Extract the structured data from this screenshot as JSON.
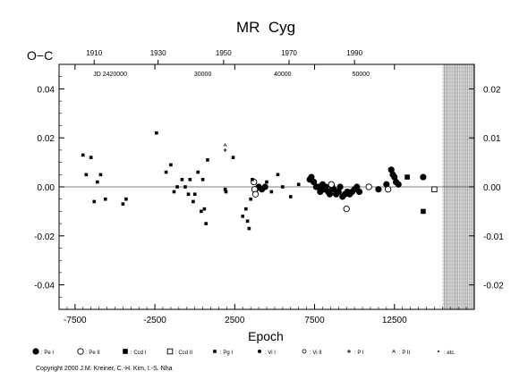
{
  "chart_data": {
    "type": "scatter",
    "title": "MR  Cyg",
    "ylabel": "O−C",
    "xlabel": "Epoch",
    "x_ticks": [
      "-7500",
      "-2500",
      "2500",
      "7500",
      "12500"
    ],
    "x_tick_values": [
      -7500,
      -2500,
      2500,
      7500,
      12500
    ],
    "xlim": [
      -8500,
      17500
    ],
    "ylim": [
      -0.05,
      0.05
    ],
    "y_ticks": [
      "0.04",
      "0.02",
      "0.00",
      "-0.02",
      "-0.04"
    ],
    "y_tick_values": [
      0.04,
      0.02,
      0.0,
      -0.02,
      -0.04
    ],
    "top_axis_years": [
      "1910",
      "1930",
      "1950",
      "1970",
      "1990"
    ],
    "top_axis_year_epochs": [
      -6300,
      -2300,
      1800,
      5900,
      10000
    ],
    "jd_labels": [
      "JD 2420000",
      "30000",
      "40000",
      "50000"
    ],
    "jd_label_epochs": [
      -5300,
      500,
      5500,
      10400
    ],
    "right_ticks": [
      "0.02",
      "0.01",
      "0.00",
      "-0.01",
      "-0.02"
    ],
    "right_tick_values": [
      0.02,
      0.01,
      0.0,
      -0.01,
      -0.02
    ],
    "hatched_region_from_epoch": 15500,
    "legend": [
      {
        "symbol": "filled-circle",
        "label": ": Pe I"
      },
      {
        "symbol": "open-circle",
        "label": ": Pe II"
      },
      {
        "symbol": "filled-square",
        "label": ": Ccd I"
      },
      {
        "symbol": "open-square",
        "label": ": Ccd II"
      },
      {
        "symbol": "small-square",
        "label": ": Pg I"
      },
      {
        "symbol": "small-dot",
        "label": ": Vi I"
      },
      {
        "symbol": "small-open-circle",
        "label": ": Vi II"
      },
      {
        "symbol": "plus",
        "label": ": P I"
      },
      {
        "symbol": "caret",
        "label": ": P II"
      },
      {
        "symbol": "tiny-dot",
        "label": ": etc."
      }
    ],
    "copyright": "Copyright 2000 J.M. Kreiner, C.-H. Kim, I.-S. Nha",
    "series": [
      {
        "name": "Pe I",
        "symbol": "filled-circle",
        "points": [
          [
            7200,
            0.003
          ],
          [
            7300,
            0.004
          ],
          [
            7450,
            0.002
          ],
          [
            7600,
            0.0
          ],
          [
            7750,
            0.0
          ],
          [
            7850,
            -0.002
          ],
          [
            8000,
            0.001
          ],
          [
            8100,
            -0.001
          ],
          [
            8200,
            0.0
          ],
          [
            8350,
            -0.002
          ],
          [
            8450,
            -0.003
          ],
          [
            8600,
            0.0
          ],
          [
            8700,
            -0.001
          ],
          [
            8850,
            -0.003
          ],
          [
            9000,
            -0.002
          ],
          [
            9100,
            0.0
          ],
          [
            9250,
            -0.004
          ],
          [
            9400,
            -0.003
          ],
          [
            9550,
            -0.002
          ],
          [
            9700,
            -0.003
          ],
          [
            9850,
            -0.002
          ],
          [
            10000,
            -0.001
          ],
          [
            10150,
            0.0
          ],
          [
            10300,
            -0.002
          ],
          [
            11500,
            -0.001
          ],
          [
            12000,
            0.001
          ],
          [
            12300,
            0.007
          ],
          [
            12400,
            0.005
          ],
          [
            12500,
            0.004
          ],
          [
            12600,
            0.002
          ],
          [
            12750,
            0.001
          ],
          [
            14300,
            0.004
          ],
          [
            4000,
            0.0
          ],
          [
            4200,
            -0.001
          ],
          [
            4400,
            0.0
          ],
          [
            3800,
            -0.001
          ]
        ]
      },
      {
        "name": "Pe II",
        "symbol": "open-circle",
        "points": [
          [
            3700,
            0.002
          ],
          [
            3750,
            -0.001
          ],
          [
            3800,
            -0.003
          ],
          [
            8550,
            0.001
          ],
          [
            9500,
            -0.009
          ],
          [
            10900,
            0.0
          ],
          [
            12100,
            -0.001
          ]
        ]
      },
      {
        "name": "Ccd I",
        "symbol": "filled-square",
        "points": [
          [
            13300,
            0.004
          ],
          [
            14300,
            -0.01
          ]
        ]
      },
      {
        "name": "Ccd II",
        "symbol": "open-square",
        "points": [
          [
            15000,
            -0.001
          ]
        ]
      },
      {
        "name": "Pg I",
        "symbol": "small-square",
        "points": [
          [
            -7000,
            0.013
          ],
          [
            -6800,
            0.005
          ],
          [
            -6500,
            0.012
          ],
          [
            -6300,
            -0.006
          ],
          [
            -6100,
            0.002
          ],
          [
            -5900,
            0.005
          ],
          [
            -5600,
            -0.005
          ],
          [
            -4500,
            -0.007
          ],
          [
            -4300,
            -0.005
          ],
          [
            -2400,
            0.022
          ],
          [
            -1800,
            0.006
          ],
          [
            -1500,
            0.009
          ],
          [
            -1300,
            -0.002
          ],
          [
            -1100,
            0.0
          ],
          [
            -800,
            0.003
          ],
          [
            -600,
            0.0
          ],
          [
            -400,
            -0.003
          ],
          [
            -300,
            0.003
          ],
          [
            -100,
            -0.006
          ],
          [
            0,
            -0.003
          ],
          [
            200,
            0.006
          ],
          [
            400,
            -0.01
          ],
          [
            500,
            0.003
          ],
          [
            600,
            -0.009
          ],
          [
            700,
            -0.015
          ],
          [
            800,
            0.011
          ],
          [
            1900,
            -0.001
          ],
          [
            1950,
            -0.002
          ],
          [
            2400,
            0.012
          ],
          [
            3000,
            -0.012
          ],
          [
            3200,
            -0.009
          ],
          [
            3300,
            -0.014
          ],
          [
            3400,
            -0.017
          ],
          [
            3500,
            -0.005
          ],
          [
            3600,
            0.003
          ],
          [
            4500,
            0.002
          ],
          [
            4800,
            -0.002
          ],
          [
            5200,
            0.005
          ],
          [
            5500,
            0.0
          ],
          [
            6000,
            -0.004
          ],
          [
            6500,
            0.001
          ]
        ]
      },
      {
        "name": "P I",
        "symbol": "plus",
        "points": [
          [
            1900,
            0.015
          ]
        ]
      },
      {
        "name": "P II",
        "symbol": "caret",
        "points": [
          [
            1900,
            0.017
          ]
        ]
      }
    ]
  }
}
